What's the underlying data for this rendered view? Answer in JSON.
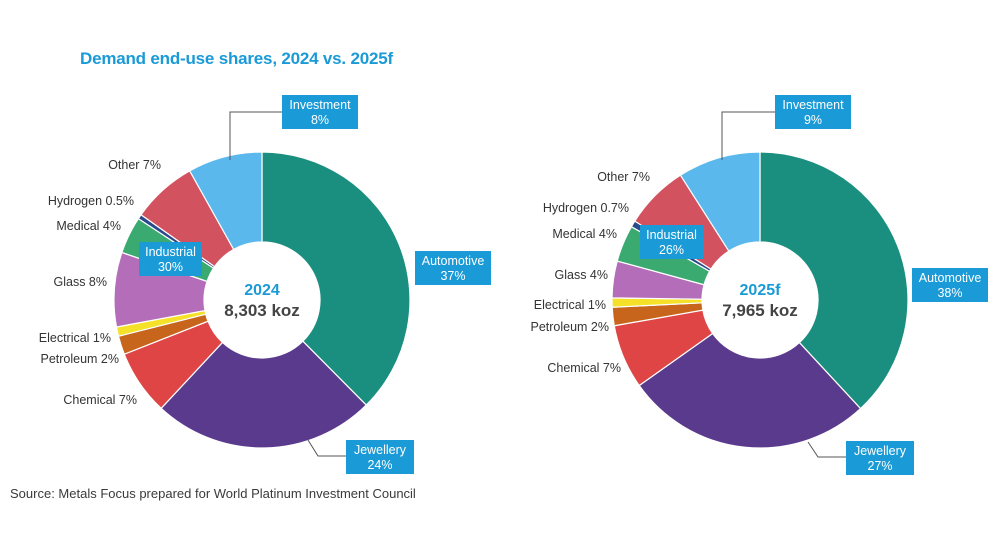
{
  "title": "Demand end-use shares, 2024 vs. 2025f",
  "source": "Source: Metals Focus prepared for World Platinum Investment Council",
  "chart_data": [
    {
      "type": "pie",
      "center_title": "2024",
      "center_value": "8,303 koz",
      "slices": [
        {
          "name": "Automotive",
          "value": 37,
          "color": "#1b8f7f",
          "label": "Automotive",
          "pct": "37%",
          "style": "box"
        },
        {
          "name": "Jewellery",
          "value": 24,
          "color": "#5a3a8c",
          "label": "Jewellery",
          "pct": "24%",
          "style": "box"
        },
        {
          "name": "Chemical",
          "value": 7,
          "color": "#e04545",
          "label": "Chemical 7%",
          "style": "text"
        },
        {
          "name": "Petroleum",
          "value": 2,
          "color": "#c7651d",
          "label": "Petroleum 2%",
          "style": "text"
        },
        {
          "name": "Electrical",
          "value": 1,
          "color": "#f5e02a",
          "label": "Electrical 1%",
          "style": "text"
        },
        {
          "name": "Glass",
          "value": 8,
          "color": "#b46db8",
          "label": "Glass 8%",
          "style": "text"
        },
        {
          "name": "Medical",
          "value": 4,
          "color": "#3aaa70",
          "label": "Medical 4%",
          "style": "text"
        },
        {
          "name": "Hydrogen",
          "value": 0.5,
          "color": "#2a4a8c",
          "label": "Hydrogen 0.5%",
          "style": "text"
        },
        {
          "name": "Other",
          "value": 7,
          "color": "#d2525f",
          "label": "Other 7%",
          "style": "text"
        },
        {
          "name": "Investment",
          "value": 8,
          "color": "#5bb8ec",
          "label": "Investment",
          "pct": "8%",
          "style": "box"
        }
      ],
      "industrial_label": "Industrial",
      "industrial_pct": "30%"
    },
    {
      "type": "pie",
      "center_title": "2025f",
      "center_value": "7,965 koz",
      "slices": [
        {
          "name": "Automotive",
          "value": 38,
          "color": "#1b8f7f",
          "label": "Automotive",
          "pct": "38%",
          "style": "box"
        },
        {
          "name": "Jewellery",
          "value": 27,
          "color": "#5a3a8c",
          "label": "Jewellery",
          "pct": "27%",
          "style": "box"
        },
        {
          "name": "Chemical",
          "value": 7,
          "color": "#e04545",
          "label": "Chemical 7%",
          "style": "text"
        },
        {
          "name": "Petroleum",
          "value": 2,
          "color": "#c7651d",
          "label": "Petroleum 2%",
          "style": "text"
        },
        {
          "name": "Electrical",
          "value": 1,
          "color": "#f5e02a",
          "label": "Electrical 1%",
          "style": "text"
        },
        {
          "name": "Glass",
          "value": 4,
          "color": "#b46db8",
          "label": "Glass 4%",
          "style": "text"
        },
        {
          "name": "Medical",
          "value": 4,
          "color": "#3aaa70",
          "label": "Medical 4%",
          "style": "text"
        },
        {
          "name": "Hydrogen",
          "value": 0.7,
          "color": "#2a4a8c",
          "label": "Hydrogen 0.7%",
          "style": "text"
        },
        {
          "name": "Other",
          "value": 7,
          "color": "#d2525f",
          "label": "Other 7%",
          "style": "text"
        },
        {
          "name": "Investment",
          "value": 9,
          "color": "#5bb8ec",
          "label": "Investment",
          "pct": "9%",
          "style": "box"
        }
      ],
      "industrial_label": "Industrial",
      "industrial_pct": "26%"
    }
  ]
}
